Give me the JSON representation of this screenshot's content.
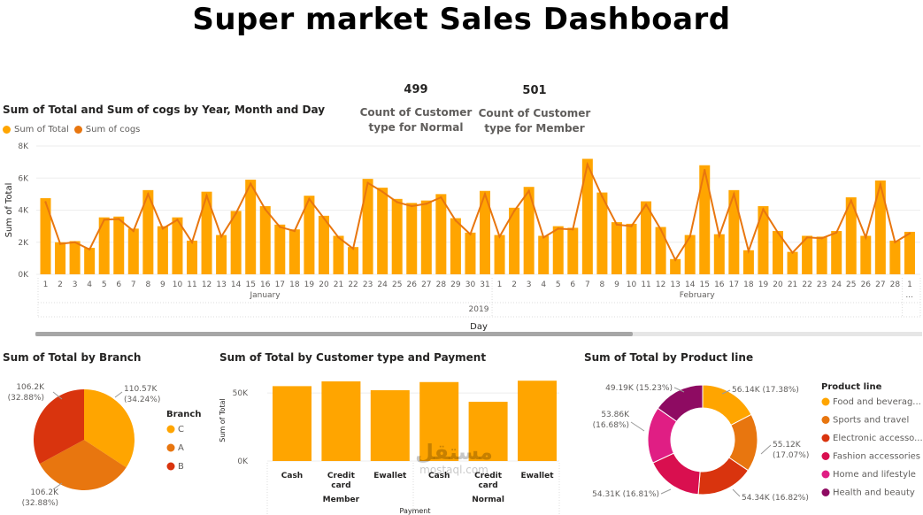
{
  "header": {
    "title": "Super market Sales Dashboard"
  },
  "cards": [
    {
      "value": "499",
      "label_line1": "Count of Customer",
      "label_line2": "type for Normal"
    },
    {
      "value": "501",
      "label_line1": "Count of Customer",
      "label_line2": "type for Member"
    }
  ],
  "colors": {
    "primary": "#FFA500",
    "secondary": "#E8760F",
    "dark_red": "#D9340E",
    "magenta": "#E01E84",
    "plum": "#8E0B62",
    "gridline": "#eeeeee"
  },
  "line_chart": {
    "title": "Sum of Total and Sum of cogs by Year, Month and Day",
    "legend": [
      "Sum of Total",
      "Sum of cogs"
    ],
    "ylabel": "Sum of Total",
    "xlabel": "Day",
    "year": "2019",
    "month_labels": [
      "January",
      "February"
    ],
    "overflow_mark": "...",
    "yticks": [
      "0K",
      "2K",
      "4K",
      "6K",
      "8K"
    ]
  },
  "branch_chart": {
    "title": "Sum of Total by Branch",
    "legend_title": "Branch",
    "labels": [
      "110.57K\n(34.24%)",
      "106.2K\n(32.88%)",
      "106.2K\n(32.88%)"
    ]
  },
  "payment_chart": {
    "title": "Sum of Total by Customer type and Payment",
    "ylabel": "Sum of Total",
    "xlabel": "Payment",
    "yticks": [
      "0K",
      "50K"
    ],
    "group_labels": [
      "Member",
      "Normal"
    ]
  },
  "product_chart": {
    "title": "Sum of Total by Product line",
    "legend_title": "Product line",
    "legend_labels": [
      "Food and beverag...",
      "Sports and travel",
      "Electronic accesso...",
      "Fashion accessories",
      "Home and lifestyle",
      "Health and beauty"
    ],
    "labels": [
      "56.14K (17.38%)",
      "55.12K\n(17.07%)",
      "54.34K (16.82%)",
      "54.31K (16.81%)",
      "53.86K\n(16.68%)",
      "49.19K (15.23%)"
    ]
  },
  "watermark": {
    "arabic": "مستقل",
    "latin": "mostaql.com"
  },
  "chart_data": [
    {
      "type": "bar",
      "title": "Sum of Total and Sum of cogs by Year, Month and Day",
      "xlabel": "Day",
      "ylabel": "Sum of Total",
      "ylim": [
        0,
        8000
      ],
      "categories": [
        "1",
        "2",
        "3",
        "4",
        "5",
        "6",
        "7",
        "8",
        "9",
        "10",
        "11",
        "12",
        "13",
        "14",
        "15",
        "16",
        "17",
        "18",
        "19",
        "20",
        "21",
        "22",
        "23",
        "24",
        "25",
        "26",
        "27",
        "28",
        "29",
        "30",
        "31",
        "1",
        "2",
        "3",
        "4",
        "5",
        "6",
        "7",
        "8",
        "9",
        "10",
        "11",
        "12",
        "13",
        "14",
        "15",
        "16",
        "17",
        "18",
        "19",
        "20",
        "21",
        "22",
        "23",
        "24",
        "25",
        "26",
        "27",
        "28",
        "1"
      ],
      "series": [
        {
          "name": "Sum of Total",
          "type": "bar",
          "values": [
            4750,
            2000,
            2070,
            1650,
            3550,
            3600,
            2850,
            5250,
            3000,
            3550,
            2100,
            5150,
            2450,
            3950,
            5900,
            4250,
            3100,
            2800,
            4900,
            3650,
            2400,
            1700,
            5950,
            5400,
            4700,
            4450,
            4600,
            5000,
            3500,
            2600,
            5200,
            2450,
            4150,
            5450,
            2400,
            3000,
            2900,
            7200,
            5100,
            3250,
            3150,
            4550,
            2950,
            950,
            2450,
            6800,
            2500,
            5250,
            1500,
            4250,
            2700,
            1400,
            2400,
            2350,
            2700,
            4800,
            2400,
            5850,
            2100,
            2650
          ]
        },
        {
          "name": "Sum of Cogs",
          "type": "line",
          "values": [
            4500,
            1900,
            2000,
            1550,
            3400,
            3450,
            2700,
            5000,
            2850,
            3400,
            2000,
            4900,
            2350,
            3800,
            5650,
            4050,
            2950,
            2700,
            4700,
            3500,
            2300,
            1600,
            5700,
            5150,
            4500,
            4250,
            4400,
            4800,
            3350,
            2500,
            5000,
            2350,
            3950,
            5200,
            2300,
            2850,
            2800,
            6850,
            4850,
            3100,
            3000,
            4350,
            2800,
            900,
            2350,
            6500,
            2400,
            5000,
            1450,
            4050,
            2600,
            1350,
            2300,
            2250,
            2600,
            4600,
            2300,
            5600,
            2000,
            2550
          ]
        }
      ],
      "x_groups": {
        "year": "2019",
        "months": [
          "January",
          "February"
        ]
      }
    },
    {
      "type": "pie",
      "title": "Sum of Total by Branch",
      "categories": [
        "C",
        "A",
        "B"
      ],
      "values": [
        110570,
        106200,
        106200
      ],
      "percent_labels": [
        "34.24%",
        "32.88%",
        "32.88%"
      ]
    },
    {
      "type": "bar",
      "title": "Sum of Total by Customer type and Payment",
      "xlabel": "Payment",
      "ylabel": "Sum of Total",
      "ylim": [
        0,
        65000
      ],
      "categories": [
        "Cash",
        "Credit card",
        "Ewallet",
        "Cash",
        "Credit card",
        "Ewallet"
      ],
      "groups": [
        "Member",
        "Member",
        "Member",
        "Normal",
        "Normal",
        "Normal"
      ],
      "values": [
        55000,
        58500,
        52000,
        58000,
        43500,
        59000
      ]
    },
    {
      "type": "pie",
      "variant": "donut",
      "title": "Sum of Total by Product line",
      "categories": [
        "Food and beverag...",
        "Sports and travel",
        "Electronic accesso...",
        "Fashion accessories",
        "Home and lifestyle",
        "Health and beauty"
      ],
      "values": [
        56140,
        55120,
        54340,
        54310,
        53860,
        49190
      ],
      "percent_labels": [
        "17.38%",
        "17.07%",
        "16.82%",
        "16.81%",
        "16.68%",
        "15.23%"
      ]
    }
  ]
}
